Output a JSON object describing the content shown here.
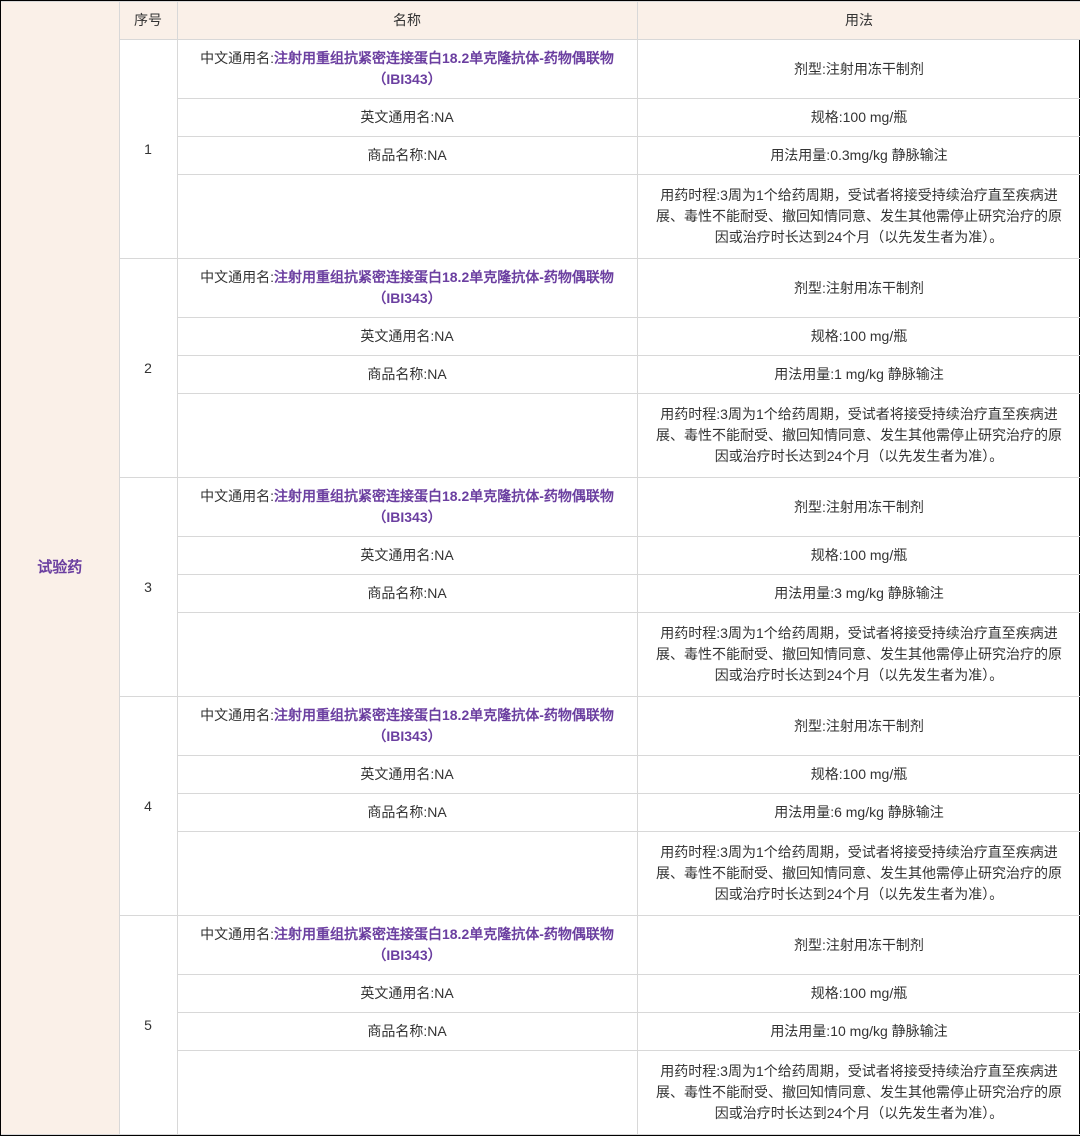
{
  "table": {
    "category_label": "试验药",
    "headers": {
      "seq": "序号",
      "name": "名称",
      "usage": "用法"
    },
    "category_color": "#6b3fa0",
    "link_color": "#6b3fa0",
    "header_bg": "#faf0e8",
    "border_color": "#d8d8d8",
    "outer_border_color": "#000000",
    "name_labels": {
      "cn_generic_prefix": "中文通用名:",
      "en_generic_prefix": "英文通用名:",
      "trade_name_prefix": "商品名称:"
    },
    "usage_labels": {
      "form_prefix": "剂型:",
      "spec_prefix": "规格:",
      "dose_prefix": "用法用量:",
      "duration_prefix": "用药时程:"
    },
    "rows": [
      {
        "seq": "1",
        "cn_generic": "注射用重组抗紧密连接蛋白18.2单克隆抗体-药物偶联物（IBI343）",
        "en_generic": "NA",
        "trade_name": "NA",
        "form": "注射用冻干制剂",
        "spec": "100 mg/瓶",
        "dose": "0.3mg/kg 静脉输注",
        "duration": "3周为1个给药周期，受试者将接受持续治疗直至疾病进展、毒性不能耐受、撤回知情同意、发生其他需停止研究治疗的原因或治疗时长达到24个月（以先发生者为准）。"
      },
      {
        "seq": "2",
        "cn_generic": "注射用重组抗紧密连接蛋白18.2单克隆抗体-药物偶联物（IBI343）",
        "en_generic": "NA",
        "trade_name": "NA",
        "form": "注射用冻干制剂",
        "spec": "100 mg/瓶",
        "dose": "1 mg/kg 静脉输注",
        "duration": "3周为1个给药周期，受试者将接受持续治疗直至疾病进展、毒性不能耐受、撤回知情同意、发生其他需停止研究治疗的原因或治疗时长达到24个月（以先发生者为准）。"
      },
      {
        "seq": "3",
        "cn_generic": "注射用重组抗紧密连接蛋白18.2单克隆抗体-药物偶联物（IBI343）",
        "en_generic": "NA",
        "trade_name": "NA",
        "form": "注射用冻干制剂",
        "spec": "100 mg/瓶",
        "dose": "3 mg/kg 静脉输注",
        "duration": "3周为1个给药周期，受试者将接受持续治疗直至疾病进展、毒性不能耐受、撤回知情同意、发生其他需停止研究治疗的原因或治疗时长达到24个月（以先发生者为准）。"
      },
      {
        "seq": "4",
        "cn_generic": "注射用重组抗紧密连接蛋白18.2单克隆抗体-药物偶联物（IBI343）",
        "en_generic": "NA",
        "trade_name": "NA",
        "form": "注射用冻干制剂",
        "spec": "100 mg/瓶",
        "dose": "6 mg/kg 静脉输注",
        "duration": "3周为1个给药周期，受试者将接受持续治疗直至疾病进展、毒性不能耐受、撤回知情同意、发生其他需停止研究治疗的原因或治疗时长达到24个月（以先发生者为准）。"
      },
      {
        "seq": "5",
        "cn_generic": "注射用重组抗紧密连接蛋白18.2单克隆抗体-药物偶联物（IBI343）",
        "en_generic": "NA",
        "trade_name": "NA",
        "form": "注射用冻干制剂",
        "spec": "100 mg/瓶",
        "dose": "10 mg/kg 静脉输注",
        "duration": "3周为1个给药周期，受试者将接受持续治疗直至疾病进展、毒性不能耐受、撤回知情同意、发生其他需停止研究治疗的原因或治疗时长达到24个月（以先发生者为准）。"
      }
    ]
  }
}
